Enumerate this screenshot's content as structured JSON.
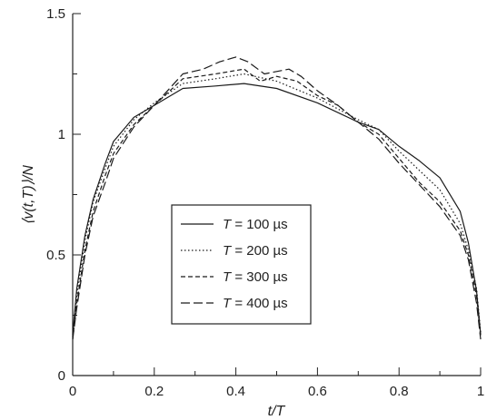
{
  "chart_data": {
    "type": "line",
    "xlabel": "t/T",
    "ylabel": "⟨v(t,T)⟩/N",
    "xlim": [
      0,
      1
    ],
    "ylim": [
      0,
      1.5
    ],
    "x_ticks": [
      0,
      0.2,
      0.4,
      0.6,
      0.8,
      1
    ],
    "x_tick_labels": [
      "0",
      "0.2",
      "0.4",
      "0.6",
      "0.8",
      "1"
    ],
    "y_ticks": [
      0,
      0.5,
      1,
      1.5
    ],
    "y_tick_labels": [
      "0",
      "0.5",
      "1",
      "1.5"
    ],
    "grid": false,
    "legend_placement": "center",
    "series": [
      {
        "name": "T = 100 µs",
        "style": "solid",
        "x": [
          0,
          0.01,
          0.03,
          0.05,
          0.08,
          0.1,
          0.15,
          0.2,
          0.27,
          0.35,
          0.42,
          0.5,
          0.6,
          0.7,
          0.75,
          0.8,
          0.85,
          0.9,
          0.95,
          0.97,
          0.99,
          1
        ],
        "y": [
          0.17,
          0.36,
          0.58,
          0.73,
          0.88,
          0.97,
          1.07,
          1.12,
          1.19,
          1.2,
          1.21,
          1.19,
          1.13,
          1.05,
          1.02,
          0.95,
          0.89,
          0.82,
          0.68,
          0.55,
          0.35,
          0.17
        ]
      },
      {
        "name": "T = 200 µs",
        "style": "dotted",
        "x": [
          0,
          0.01,
          0.03,
          0.05,
          0.08,
          0.1,
          0.15,
          0.2,
          0.27,
          0.35,
          0.42,
          0.5,
          0.6,
          0.7,
          0.75,
          0.8,
          0.85,
          0.9,
          0.95,
          0.97,
          0.99,
          1
        ],
        "y": [
          0.16,
          0.33,
          0.56,
          0.72,
          0.86,
          0.95,
          1.06,
          1.13,
          1.21,
          1.23,
          1.25,
          1.22,
          1.15,
          1.06,
          1.02,
          0.93,
          0.85,
          0.77,
          0.63,
          0.52,
          0.36,
          0.18
        ]
      },
      {
        "name": "T = 300 µs",
        "style": "short-dash",
        "x": [
          0,
          0.01,
          0.03,
          0.05,
          0.08,
          0.1,
          0.15,
          0.2,
          0.27,
          0.35,
          0.42,
          0.46,
          0.5,
          0.55,
          0.6,
          0.65,
          0.7,
          0.75,
          0.8,
          0.85,
          0.9,
          0.95,
          0.97,
          0.99,
          1
        ],
        "y": [
          0.15,
          0.3,
          0.52,
          0.68,
          0.83,
          0.92,
          1.04,
          1.12,
          1.23,
          1.25,
          1.27,
          1.22,
          1.24,
          1.22,
          1.16,
          1.12,
          1.05,
          1.0,
          0.9,
          0.8,
          0.72,
          0.6,
          0.5,
          0.33,
          0.16
        ]
      },
      {
        "name": "T = 400 µs",
        "style": "long-dash",
        "x": [
          0,
          0.01,
          0.03,
          0.05,
          0.08,
          0.1,
          0.15,
          0.2,
          0.27,
          0.32,
          0.36,
          0.4,
          0.43,
          0.47,
          0.5,
          0.53,
          0.56,
          0.6,
          0.65,
          0.7,
          0.75,
          0.8,
          0.85,
          0.9,
          0.95,
          0.97,
          0.99,
          1
        ],
        "y": [
          0.15,
          0.28,
          0.5,
          0.66,
          0.8,
          0.9,
          1.03,
          1.12,
          1.25,
          1.27,
          1.3,
          1.32,
          1.3,
          1.25,
          1.26,
          1.27,
          1.24,
          1.18,
          1.12,
          1.05,
          0.98,
          0.88,
          0.79,
          0.7,
          0.58,
          0.48,
          0.3,
          0.15
        ]
      }
    ]
  },
  "legend": {
    "entries": [
      {
        "var": "T",
        "rest": " = 100 µs",
        "style": "solid"
      },
      {
        "var": "T",
        "rest": " = 200 µs",
        "style": "dotted"
      },
      {
        "var": "T",
        "rest": " = 300 µs",
        "style": "short-dash"
      },
      {
        "var": "T",
        "rest": " = 400 µs",
        "style": "long-dash"
      }
    ]
  },
  "colors": {
    "line": "#1a1a1a",
    "axis": "#222222"
  }
}
